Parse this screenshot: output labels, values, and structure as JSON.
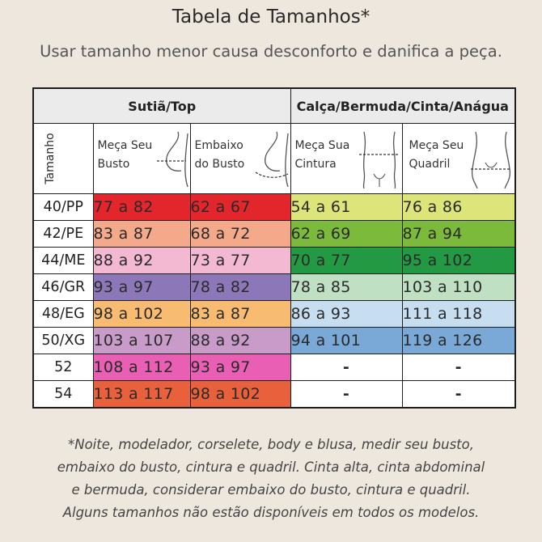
{
  "title": "Tabela de Tamanhos*",
  "subtitle": "Usar tamanho menor causa desconforto e danifica a peça.",
  "groups": {
    "top": "Sutiã/Top",
    "bottom": "Calça/Bermuda/Cinta/Anágua"
  },
  "headers": {
    "size": "Tamanho",
    "busto": [
      "Meça Seu",
      "Busto"
    ],
    "embaixo": [
      "Embaixo",
      "do Busto"
    ],
    "cintura": [
      "Meça Sua",
      "Cintura"
    ],
    "quadril": [
      "Meça Seu",
      "Quadril"
    ]
  },
  "rows": [
    {
      "size": "40/PP",
      "busto": "77 a 82",
      "embaixo": "62 a 67",
      "cintura": "54 a 61",
      "quadril": "76 a 86"
    },
    {
      "size": "42/PE",
      "busto": "83 a 87",
      "embaixo": "68 a 72",
      "cintura": "62 a 69",
      "quadril": "87 a 94"
    },
    {
      "size": "44/ME",
      "busto": "88 a 92",
      "embaixo": "73 a 77",
      "cintura": "70 a 77",
      "quadril": "95 a 102"
    },
    {
      "size": "46/GR",
      "busto": "93 a 97",
      "embaixo": "78 a 82",
      "cintura": "78 a 85",
      "quadril": "103 a 110"
    },
    {
      "size": "48/EG",
      "busto": "98 a 102",
      "embaixo": "83 a 87",
      "cintura": "86 a 93",
      "quadril": "111 a 118"
    },
    {
      "size": "50/XG",
      "busto": "103 a 107",
      "embaixo": "88 a 92",
      "cintura": "94 a 101",
      "quadril": "119 a 126"
    },
    {
      "size": "52",
      "busto": "108 a 112",
      "embaixo": "93 a 97",
      "cintura": "-",
      "quadril": "-"
    },
    {
      "size": "54",
      "busto": "113 a 117",
      "embaixo": "98 a 102",
      "cintura": "-",
      "quadril": "-"
    }
  ],
  "colors": {
    "top": [
      "#e3262b",
      "#f3a98a",
      "#f3b9d3",
      "#8c78b8",
      "#f7bc72",
      "#c99bc9",
      "#e95fb3",
      "#e8613c"
    ],
    "bottom_cintura": [
      "#dde47a",
      "#7cba3c",
      "#239943",
      "#bfe0c2",
      "#c7def0",
      "#7aa9d7",
      "#ffffff",
      "#ffffff"
    ],
    "bottom_quadril": [
      "#dde47a",
      "#7cba3c",
      "#239943",
      "#bfe0c2",
      "#c7def0",
      "#7aa9d7",
      "#ffffff",
      "#ffffff"
    ]
  },
  "footnote": [
    "*Noite, modelador, corselete, body e blusa, medir seu busto,",
    "embaixo do busto, cintura e quadril. Cinta alta, cinta abdominal",
    "e bermuda, considerar embaixo do busto, cintura e quadril.",
    "Alguns tamanhos não estão disponíveis em todos os modelos."
  ]
}
